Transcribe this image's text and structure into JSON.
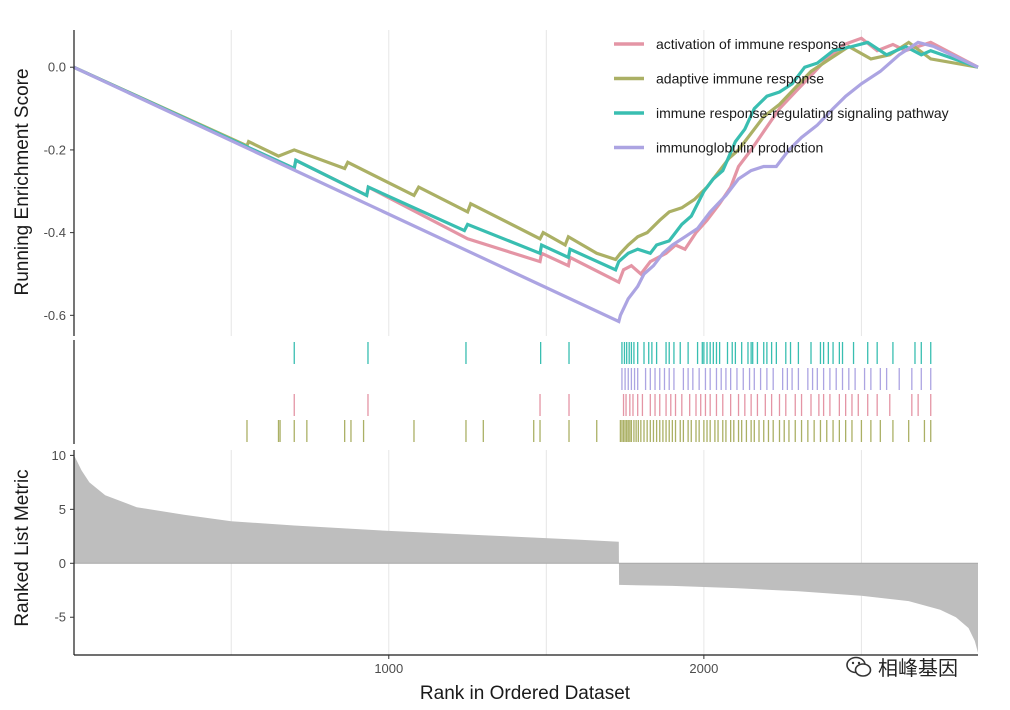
{
  "chart_data": {
    "type": "line",
    "subtype": "multi-gsea-plot",
    "title": "",
    "xlabel": "Rank in Ordered Dataset",
    "x_range": [
      1,
      2870
    ],
    "x_ticks": [
      1000,
      2000
    ],
    "es_panel": {
      "ylabel": "Running Enrichment Score",
      "ylim": [
        -0.65,
        0.09
      ],
      "y_ticks": [
        0.0,
        -0.2,
        -0.4,
        -0.6
      ],
      "y_tick_labels": [
        "0.0",
        "-0.2",
        "-0.4",
        "-0.6"
      ],
      "grid_x": [
        500,
        1500,
        2500
      ],
      "legend_position": "top-right",
      "series": [
        {
          "name": "activation of immune response",
          "color": "#E495A5",
          "points": [
            [
              0,
              0
            ],
            [
              700,
              -0.245
            ],
            [
              705,
              -0.225
            ],
            [
              930,
              -0.31
            ],
            [
              935,
              -0.29
            ],
            [
              1250,
              -0.415
            ],
            [
              1480,
              -0.47
            ],
            [
              1485,
              -0.45
            ],
            [
              1570,
              -0.48
            ],
            [
              1575,
              -0.46
            ],
            [
              1730,
              -0.52
            ],
            [
              1745,
              -0.49
            ],
            [
              1770,
              -0.48
            ],
            [
              1800,
              -0.5
            ],
            [
              1830,
              -0.47
            ],
            [
              1880,
              -0.45
            ],
            [
              1910,
              -0.43
            ],
            [
              1940,
              -0.44
            ],
            [
              1975,
              -0.4
            ],
            [
              2010,
              -0.37
            ],
            [
              2050,
              -0.33
            ],
            [
              2085,
              -0.29
            ],
            [
              2110,
              -0.24
            ],
            [
              2150,
              -0.2
            ],
            [
              2195,
              -0.15
            ],
            [
              2240,
              -0.1
            ],
            [
              2290,
              -0.06
            ],
            [
              2340,
              -0.02
            ],
            [
              2390,
              0.02
            ],
            [
              2445,
              0.055
            ],
            [
              2500,
              0.07
            ],
            [
              2550,
              0.04
            ],
            [
              2600,
              0.055
            ],
            [
              2640,
              0.04
            ],
            [
              2720,
              0.06
            ],
            [
              2870,
              0.0
            ]
          ]
        },
        {
          "name": "adaptive immune response",
          "color": "#ABB065",
          "points": [
            [
              0,
              0
            ],
            [
              550,
              -0.19
            ],
            [
              555,
              -0.18
            ],
            [
              650,
              -0.215
            ],
            [
              700,
              -0.2
            ],
            [
              860,
              -0.245
            ],
            [
              870,
              -0.23
            ],
            [
              1080,
              -0.31
            ],
            [
              1095,
              -0.29
            ],
            [
              1250,
              -0.35
            ],
            [
              1260,
              -0.33
            ],
            [
              1480,
              -0.415
            ],
            [
              1490,
              -0.4
            ],
            [
              1560,
              -0.43
            ],
            [
              1570,
              -0.41
            ],
            [
              1660,
              -0.45
            ],
            [
              1720,
              -0.465
            ],
            [
              1735,
              -0.45
            ],
            [
              1760,
              -0.43
            ],
            [
              1790,
              -0.41
            ],
            [
              1820,
              -0.4
            ],
            [
              1860,
              -0.37
            ],
            [
              1890,
              -0.35
            ],
            [
              1930,
              -0.34
            ],
            [
              1970,
              -0.32
            ],
            [
              2010,
              -0.29
            ],
            [
              2040,
              -0.26
            ],
            [
              2080,
              -0.22
            ],
            [
              2110,
              -0.2
            ],
            [
              2150,
              -0.16
            ],
            [
              2190,
              -0.12
            ],
            [
              2240,
              -0.09
            ],
            [
              2290,
              -0.05
            ],
            [
              2340,
              -0.01
            ],
            [
              2400,
              0.02
            ],
            [
              2460,
              0.05
            ],
            [
              2530,
              0.02
            ],
            [
              2590,
              0.03
            ],
            [
              2650,
              0.06
            ],
            [
              2720,
              0.02
            ],
            [
              2870,
              0.0
            ]
          ]
        },
        {
          "name": "immune response-regulating signaling pathway",
          "color": "#39BEB1",
          "points": [
            [
              0,
              0
            ],
            [
              700,
              -0.245
            ],
            [
              705,
              -0.225
            ],
            [
              930,
              -0.31
            ],
            [
              935,
              -0.29
            ],
            [
              1240,
              -0.395
            ],
            [
              1250,
              -0.38
            ],
            [
              1480,
              -0.45
            ],
            [
              1485,
              -0.43
            ],
            [
              1570,
              -0.46
            ],
            [
              1575,
              -0.44
            ],
            [
              1720,
              -0.49
            ],
            [
              1730,
              -0.47
            ],
            [
              1760,
              -0.45
            ],
            [
              1790,
              -0.44
            ],
            [
              1830,
              -0.45
            ],
            [
              1850,
              -0.43
            ],
            [
              1890,
              -0.42
            ],
            [
              1910,
              -0.4
            ],
            [
              1930,
              -0.38
            ],
            [
              1960,
              -0.36
            ],
            [
              2000,
              -0.3
            ],
            [
              2030,
              -0.27
            ],
            [
              2060,
              -0.25
            ],
            [
              2100,
              -0.18
            ],
            [
              2130,
              -0.15
            ],
            [
              2160,
              -0.1
            ],
            [
              2200,
              -0.07
            ],
            [
              2240,
              -0.06
            ],
            [
              2280,
              -0.04
            ],
            [
              2320,
              0.0
            ],
            [
              2360,
              0.01
            ],
            [
              2410,
              0.04
            ],
            [
              2470,
              0.05
            ],
            [
              2520,
              0.06
            ],
            [
              2580,
              0.03
            ],
            [
              2640,
              0.05
            ],
            [
              2690,
              0.03
            ],
            [
              2720,
              0.04
            ],
            [
              2870,
              0.0
            ]
          ]
        },
        {
          "name": "immunoglobulin production",
          "color": "#ACA4E2",
          "points": [
            [
              0,
              0
            ],
            [
              1730,
              -0.615
            ],
            [
              1735,
              -0.6
            ],
            [
              1760,
              -0.56
            ],
            [
              1790,
              -0.53
            ],
            [
              1810,
              -0.5
            ],
            [
              1840,
              -0.48
            ],
            [
              1870,
              -0.45
            ],
            [
              1900,
              -0.43
            ],
            [
              1940,
              -0.41
            ],
            [
              1980,
              -0.39
            ],
            [
              2020,
              -0.35
            ],
            [
              2070,
              -0.31
            ],
            [
              2110,
              -0.27
            ],
            [
              2150,
              -0.25
            ],
            [
              2190,
              -0.24
            ],
            [
              2230,
              -0.24
            ],
            [
              2270,
              -0.2
            ],
            [
              2310,
              -0.17
            ],
            [
              2360,
              -0.14
            ],
            [
              2410,
              -0.1
            ],
            [
              2450,
              -0.07
            ],
            [
              2500,
              -0.04
            ],
            [
              2560,
              -0.01
            ],
            [
              2620,
              0.03
            ],
            [
              2680,
              0.06
            ],
            [
              2730,
              0.05
            ],
            [
              2870,
              0.0
            ]
          ]
        }
      ]
    },
    "hit_panel": {
      "rows": [
        {
          "name": "immune response-regulating signaling pathway",
          "color": "#39BEB1",
          "hits": [
            700,
            934,
            1245,
            1482,
            1572,
            1740,
            1748,
            1755,
            1763,
            1770,
            1778,
            1790,
            1810,
            1825,
            1835,
            1850,
            1880,
            1890,
            1905,
            1925,
            1950,
            1980,
            1995,
            2000,
            2010,
            2020,
            2030,
            2040,
            2050,
            2075,
            2090,
            2100,
            2120,
            2140,
            2150,
            2155,
            2170,
            2190,
            2200,
            2215,
            2230,
            2260,
            2275,
            2300,
            2340,
            2370,
            2380,
            2395,
            2410,
            2430,
            2440,
            2475,
            2520,
            2550,
            2600,
            2670,
            2690,
            2720
          ]
        },
        {
          "name": "immunoglobulin production",
          "color": "#ACA4E2",
          "hits": [
            1740,
            1750,
            1760,
            1770,
            1780,
            1790,
            1815,
            1830,
            1845,
            1860,
            1875,
            1890,
            1905,
            1935,
            1950,
            1965,
            1985,
            2005,
            2020,
            2040,
            2055,
            2070,
            2085,
            2105,
            2125,
            2145,
            2160,
            2180,
            2200,
            2220,
            2250,
            2265,
            2280,
            2300,
            2330,
            2345,
            2360,
            2380,
            2400,
            2420,
            2440,
            2460,
            2480,
            2510,
            2530,
            2560,
            2580,
            2620,
            2660,
            2690,
            2720
          ]
        },
        {
          "name": "activation of immune response",
          "color": "#E495A5",
          "hits": [
            700,
            934,
            1480,
            1572,
            1745,
            1753,
            1765,
            1775,
            1790,
            1805,
            1830,
            1845,
            1860,
            1880,
            1895,
            1910,
            1930,
            1955,
            1975,
            1990,
            2005,
            2020,
            2040,
            2060,
            2085,
            2110,
            2130,
            2150,
            2170,
            2195,
            2215,
            2240,
            2260,
            2290,
            2310,
            2340,
            2365,
            2380,
            2400,
            2430,
            2450,
            2470,
            2490,
            2520,
            2550,
            2590,
            2660,
            2680,
            2720
          ]
        },
        {
          "name": "adaptive immune response",
          "color": "#ABB065",
          "hits": [
            550,
            650,
            655,
            700,
            740,
            860,
            880,
            920,
            1080,
            1245,
            1300,
            1460,
            1480,
            1572,
            1660,
            1735,
            1740,
            1745,
            1750,
            1755,
            1760,
            1765,
            1770,
            1778,
            1785,
            1792,
            1800,
            1810,
            1820,
            1830,
            1840,
            1850,
            1860,
            1870,
            1880,
            1890,
            1900,
            1910,
            1925,
            1935,
            1950,
            1960,
            1975,
            1985,
            2000,
            2010,
            2020,
            2035,
            2045,
            2060,
            2070,
            2085,
            2095,
            2110,
            2120,
            2135,
            2150,
            2160,
            2175,
            2190,
            2205,
            2220,
            2240,
            2255,
            2270,
            2290,
            2310,
            2330,
            2350,
            2370,
            2390,
            2410,
            2430,
            2450,
            2470,
            2500,
            2530,
            2560,
            2600,
            2650,
            2700,
            2720
          ]
        }
      ]
    },
    "metric_panel": {
      "ylabel": "Ranked List Metric",
      "ylim": [
        -8.5,
        10.5
      ],
      "y_ticks": [
        10,
        5,
        0,
        -5
      ],
      "y_tick_labels": [
        "10",
        "5",
        "0",
        "-5"
      ],
      "color": "#BEBEBE",
      "profile": [
        [
          1,
          10.0
        ],
        [
          10,
          9.5
        ],
        [
          25,
          8.6
        ],
        [
          50,
          7.5
        ],
        [
          100,
          6.3
        ],
        [
          200,
          5.2
        ],
        [
          350,
          4.5
        ],
        [
          500,
          3.9
        ],
        [
          700,
          3.5
        ],
        [
          1000,
          3.0
        ],
        [
          1300,
          2.6
        ],
        [
          1600,
          2.2
        ],
        [
          1730,
          2.0
        ],
        [
          1731,
          -2.0
        ],
        [
          1900,
          -2.1
        ],
        [
          2100,
          -2.3
        ],
        [
          2300,
          -2.6
        ],
        [
          2500,
          -3.0
        ],
        [
          2650,
          -3.5
        ],
        [
          2750,
          -4.3
        ],
        [
          2800,
          -5.0
        ],
        [
          2840,
          -6.0
        ],
        [
          2860,
          -7.2
        ],
        [
          2870,
          -8.3
        ]
      ]
    }
  },
  "watermark": {
    "text": "相峰基因",
    "icon": "wechat-icon"
  }
}
